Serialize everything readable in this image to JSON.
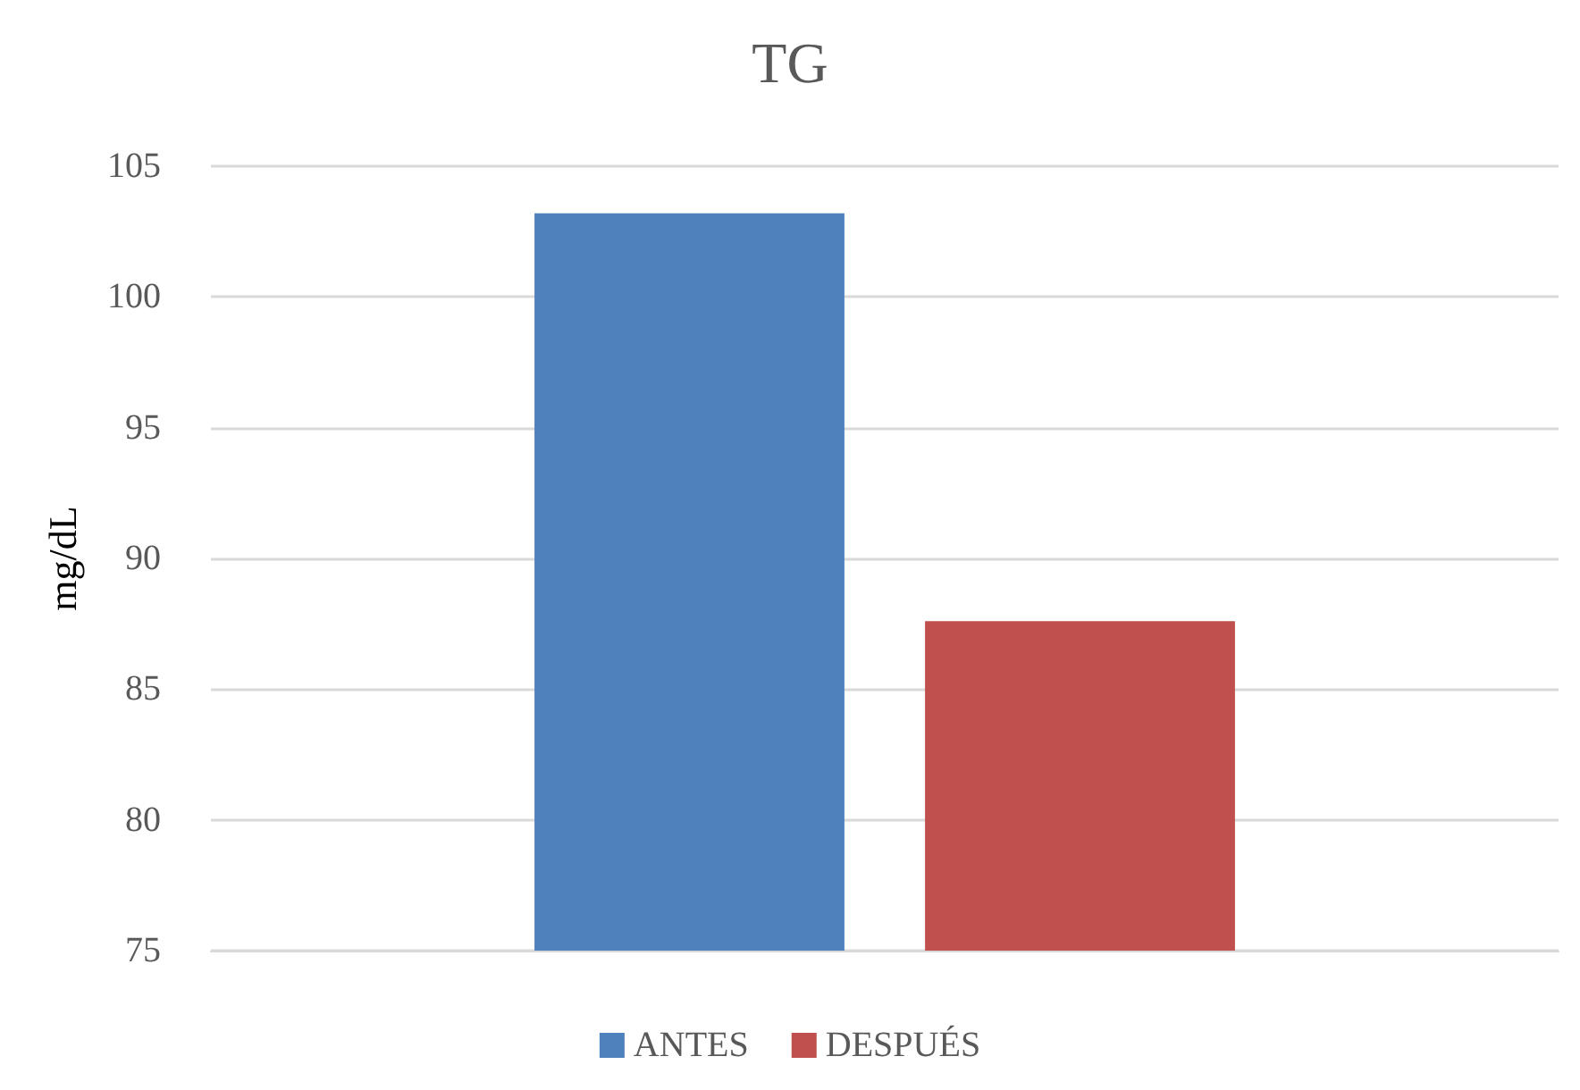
{
  "chart_data": {
    "type": "bar",
    "title": "TG",
    "ylabel": "mg/dL",
    "categories": [
      null
    ],
    "series": [
      {
        "name": "ANTES",
        "color": "#4f81bd",
        "values": [
          103.2
        ]
      },
      {
        "name": "DESPUÉS",
        "color": "#c0504d",
        "values": [
          87.6
        ]
      }
    ],
    "ylim": [
      75,
      105
    ],
    "yticks": [
      75,
      80,
      85,
      90,
      95,
      100,
      105
    ],
    "grid": "y",
    "legend": "bottom"
  }
}
